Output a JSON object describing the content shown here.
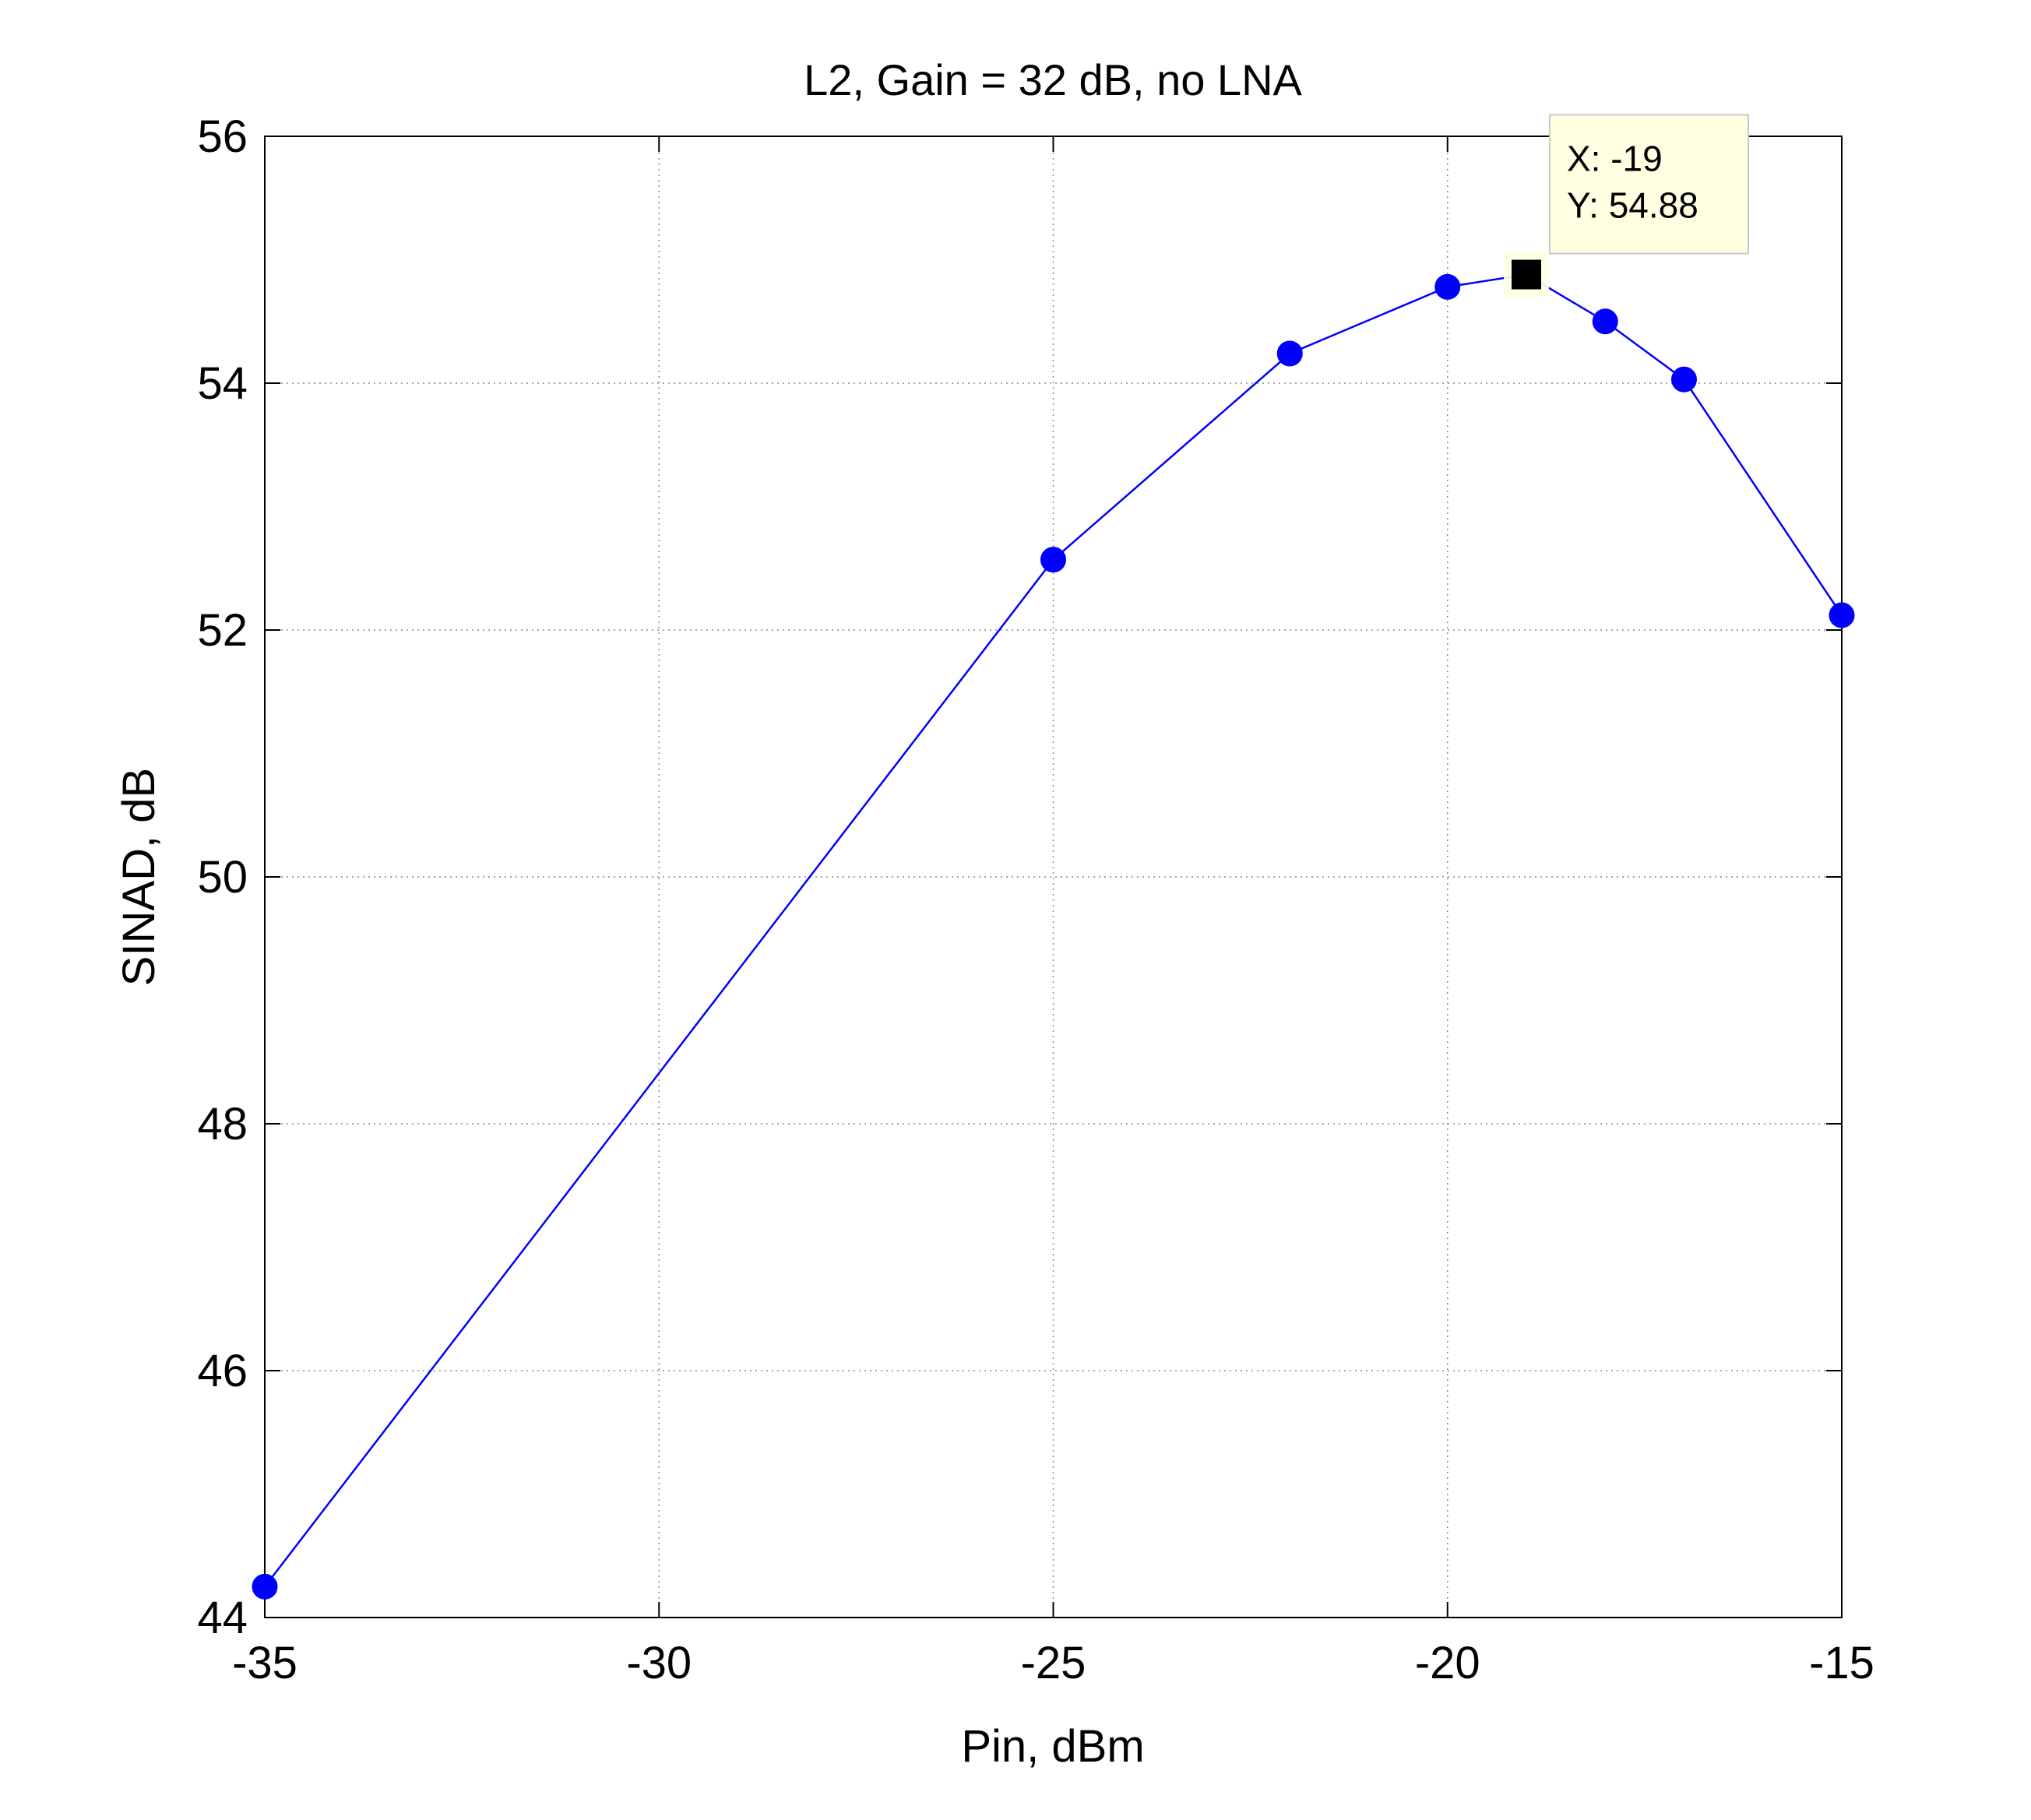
{
  "chart_data": {
    "type": "line",
    "title": "L2, Gain = 32 dB, no LNA",
    "xlabel": "Pin, dBm",
    "ylabel": "SINAD, dB",
    "xlim": [
      -35,
      -15
    ],
    "ylim": [
      44,
      56
    ],
    "xticks": [
      -35,
      -30,
      -25,
      -20,
      -15
    ],
    "yticks": [
      44,
      46,
      48,
      50,
      52,
      54,
      56
    ],
    "xtick_labels": [
      "-35",
      "-30",
      "-25",
      "-20",
      "-15"
    ],
    "ytick_labels": [
      "44",
      "46",
      "48",
      "50",
      "52",
      "54",
      "56"
    ],
    "grid": true,
    "series": [
      {
        "color": "#0000ff",
        "marker": "circle",
        "x": [
          -35,
          -25,
          -22,
          -20,
          -19,
          -18,
          -17,
          -15
        ],
        "y": [
          44.25,
          52.57,
          54.24,
          54.78,
          54.88,
          54.5,
          54.03,
          52.12
        ]
      }
    ],
    "datatip": {
      "x": -19,
      "y": 54.88,
      "lines": [
        "X: -19",
        "Y: 54.88"
      ]
    }
  }
}
